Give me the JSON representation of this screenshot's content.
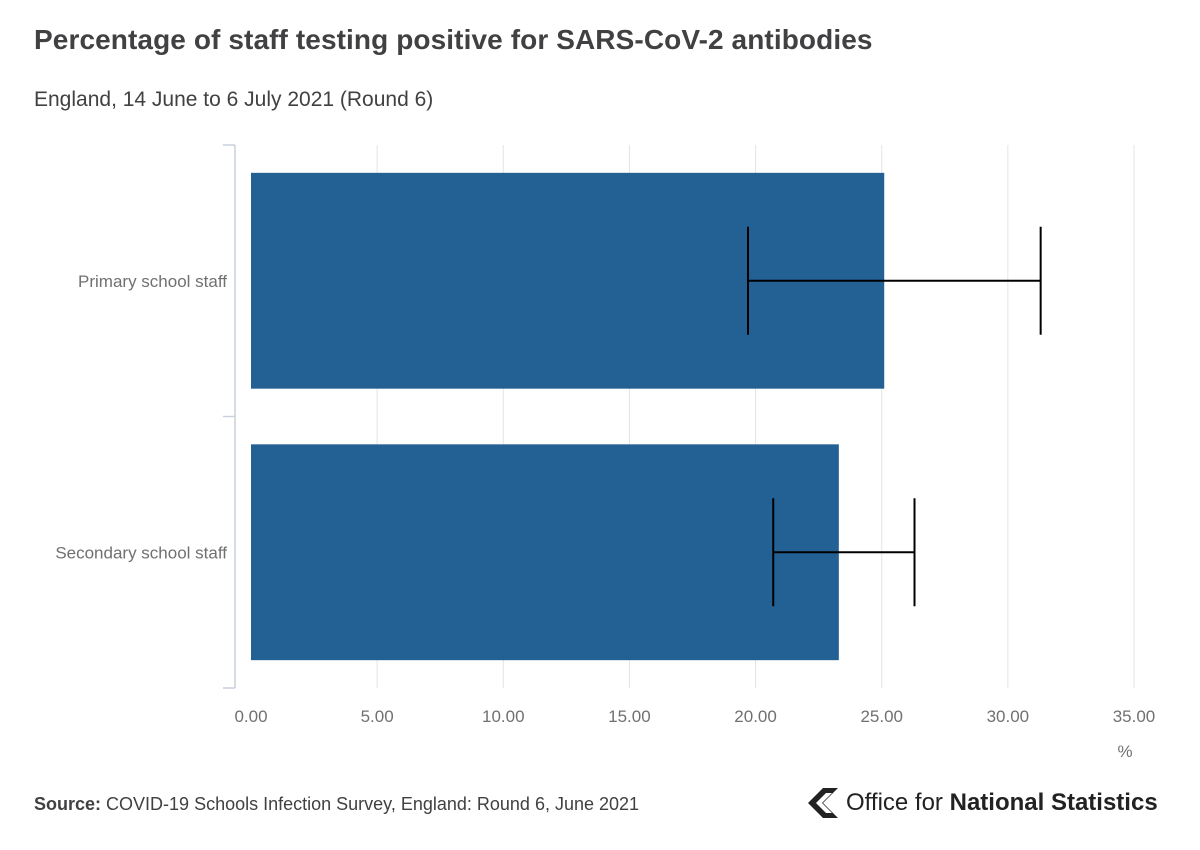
{
  "title": "Percentage of staff testing positive for SARS-CoV-2 antibodies",
  "subtitle": "England, 14 June to 6 July 2021 (Round 6)",
  "source": {
    "label": "Source:",
    "text": "COVID-19 Schools Infection Survey, England: Round 6, June 2021"
  },
  "logo": {
    "prefix": "Office for",
    "name": "National Statistics"
  },
  "colors": {
    "bar": "#236195",
    "error_bar": "#000000",
    "grid": "#e4e4e4",
    "axis": "#c9d1dc",
    "tick_label": "#707071"
  },
  "chart_data": {
    "type": "bar",
    "orientation": "horizontal",
    "title": "Percentage of staff testing positive for SARS-CoV-2 antibodies",
    "xlabel": "%",
    "ylabel": "",
    "categories": [
      "Primary school staff",
      "Secondary school staff"
    ],
    "values": [
      25.1,
      23.3
    ],
    "error_bars": [
      {
        "lower": 19.7,
        "upper": 31.3
      },
      {
        "lower": 20.7,
        "upper": 26.3
      }
    ],
    "xlim": [
      0,
      35
    ],
    "x_ticks": [
      0,
      5,
      10,
      15,
      20,
      25,
      30,
      35
    ],
    "x_tick_labels": [
      "0.00",
      "5.00",
      "10.00",
      "15.00",
      "20.00",
      "25.00",
      "30.00",
      "35.00"
    ],
    "grid": true
  }
}
